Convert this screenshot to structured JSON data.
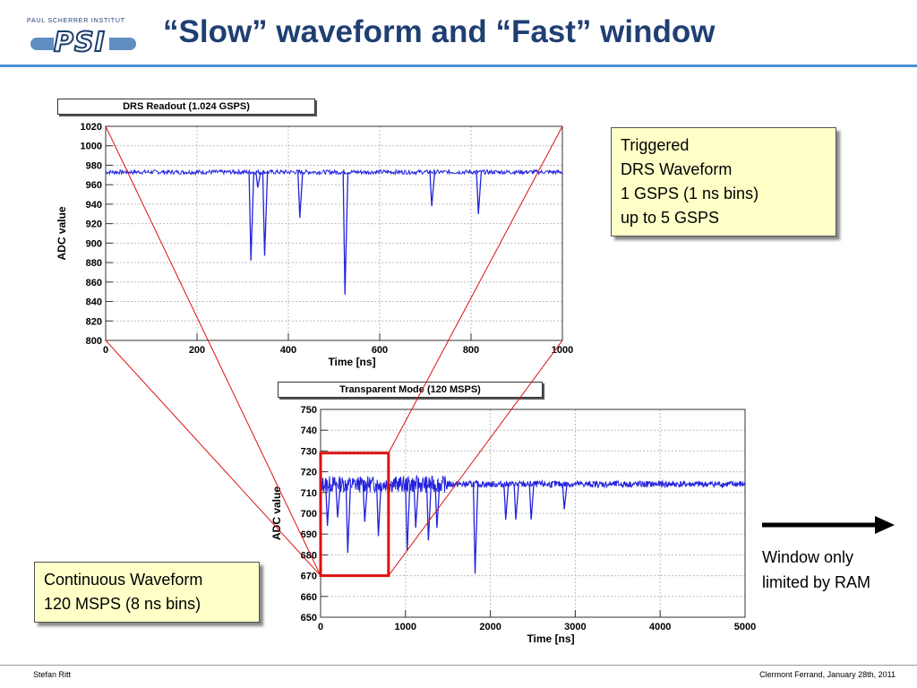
{
  "header": {
    "logo_institute": "PAUL SCHERRER INSTITUT",
    "logo_word": "PSI",
    "title": "“Slow” waveform and “Fast” window"
  },
  "footer": {
    "author": "Stefan Ritt",
    "venue_date": "Clermont Ferrand, January 28th, 2011"
  },
  "callouts": {
    "drs_lines": [
      "Triggered",
      "DRS Waveform",
      "1 GSPS (1 ns bins)",
      "up to 5 GSPS"
    ],
    "continuous_lines": [
      "Continuous Waveform",
      "120 MSPS (8 ns bins)"
    ],
    "ram_lines": [
      "Window only",
      "limited by RAM"
    ]
  },
  "colors": {
    "title": "#1f3f73",
    "rule": "#4a90d9",
    "trace": "#2222dd",
    "zoom": "#dd1111",
    "callout_bg": "#ffffc8"
  },
  "chart_data": [
    {
      "type": "line",
      "title": "DRS Readout (1.024 GSPS)",
      "xlabel": "Time [ns]",
      "ylabel": "ADC value",
      "xlim": [
        0,
        1000
      ],
      "ylim": [
        800,
        1020
      ],
      "xticks": [
        0,
        200,
        400,
        600,
        800,
        1000
      ],
      "yticks": [
        800,
        820,
        840,
        860,
        880,
        900,
        920,
        940,
        960,
        980,
        1000,
        1020
      ],
      "grid": true,
      "series": [
        {
          "baseline": 973,
          "pulses": [
            {
              "x": 318,
              "y": 882
            },
            {
              "x": 333,
              "y": 957
            },
            {
              "x": 348,
              "y": 887
            },
            {
              "x": 425,
              "y": 926
            },
            {
              "x": 524,
              "y": 847
            },
            {
              "x": 714,
              "y": 938
            },
            {
              "x": 816,
              "y": 930
            }
          ]
        }
      ]
    },
    {
      "type": "line",
      "title": "Transparent Mode (120 MSPS)",
      "xlabel": "Time [ns]",
      "ylabel": "ADC value",
      "xlim": [
        0,
        5000
      ],
      "ylim": [
        650,
        750
      ],
      "xticks": [
        0,
        1000,
        2000,
        3000,
        4000,
        5000
      ],
      "yticks": [
        650,
        660,
        670,
        680,
        690,
        700,
        710,
        720,
        730,
        740,
        750
      ],
      "grid": true,
      "series": [
        {
          "baseline": 714,
          "pulses": [
            {
              "x": 80,
              "y": 694
            },
            {
              "x": 200,
              "y": 698
            },
            {
              "x": 320,
              "y": 681
            },
            {
              "x": 520,
              "y": 696
            },
            {
              "x": 680,
              "y": 689
            },
            {
              "x": 1020,
              "y": 682
            },
            {
              "x": 1120,
              "y": 693
            },
            {
              "x": 1270,
              "y": 687
            },
            {
              "x": 1370,
              "y": 693
            },
            {
              "x": 1820,
              "y": 671
            },
            {
              "x": 2180,
              "y": 697
            },
            {
              "x": 2300,
              "y": 697
            },
            {
              "x": 2480,
              "y": 697
            },
            {
              "x": 2870,
              "y": 702
            }
          ]
        }
      ],
      "zoom_window": {
        "x": [
          0,
          800
        ],
        "y": [
          670,
          729
        ]
      }
    }
  ]
}
